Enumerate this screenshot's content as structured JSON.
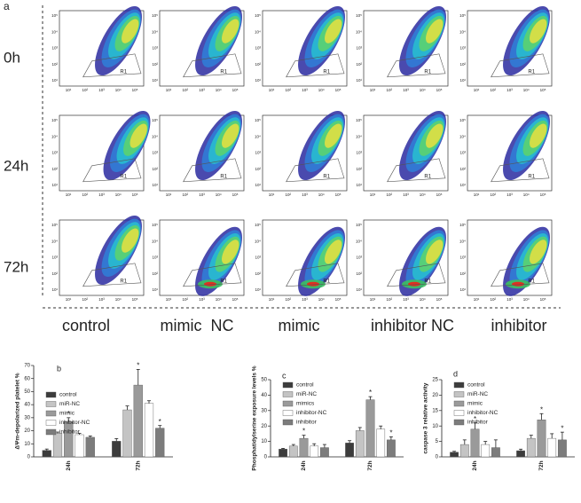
{
  "figure": {
    "panel_labels": [
      "a",
      "b",
      "c",
      "d"
    ],
    "time_points": [
      "0h",
      "24h",
      "72h"
    ],
    "groups": [
      "control",
      "mimic  NC",
      "mimic",
      "inhibitor NC",
      "inhibitor"
    ],
    "gate_label": "R1",
    "flow_ticks": [
      "10¹",
      "10²",
      "10³",
      "10⁴",
      "10⁵"
    ]
  },
  "chart_data": [
    {
      "type": "bar",
      "y_label": "ΔΨm-depolarized platelet %",
      "categories": [
        "24h",
        "72h"
      ],
      "ylim": [
        0,
        70
      ],
      "yticks": [
        0,
        10,
        20,
        30,
        40,
        50,
        60,
        70
      ],
      "legend": "top-left",
      "series": [
        {
          "name": "control",
          "color": "#3c3c3c",
          "values": [
            5,
            12
          ],
          "errors": [
            1,
            2
          ],
          "significance": [
            null,
            null
          ]
        },
        {
          "name": "miR-NC",
          "color": "#c4c4c4",
          "values": [
            18,
            36
          ],
          "errors": [
            1,
            3
          ],
          "significance": [
            null,
            null
          ]
        },
        {
          "name": "mimic",
          "color": "#9a9a9a",
          "values": [
            27,
            55
          ],
          "errors": [
            3,
            12
          ],
          "significance": [
            "*",
            "*"
          ]
        },
        {
          "name": "inhibitor-NC",
          "color": "#ffffff",
          "values": [
            17,
            41
          ],
          "errors": [
            1,
            2
          ],
          "significance": [
            null,
            null
          ]
        },
        {
          "name": "inhibitor",
          "color": "#7c7c7c",
          "values": [
            15,
            22
          ],
          "errors": [
            1,
            2
          ],
          "significance": [
            null,
            "*"
          ]
        }
      ]
    },
    {
      "type": "bar",
      "y_label": "Phosphatidylserine exposure levels %",
      "categories": [
        "24h",
        "72h"
      ],
      "ylim": [
        0,
        50
      ],
      "yticks": [
        0,
        10,
        20,
        30,
        40,
        50
      ],
      "legend": "top-left",
      "series": [
        {
          "name": "control",
          "color": "#3c3c3c",
          "values": [
            5,
            9
          ],
          "errors": [
            0.5,
            1.5
          ],
          "significance": [
            null,
            null
          ]
        },
        {
          "name": "miR-NC",
          "color": "#c4c4c4",
          "values": [
            7,
            17
          ],
          "errors": [
            1,
            2
          ],
          "significance": [
            null,
            null
          ]
        },
        {
          "name": "mimics",
          "color": "#9a9a9a",
          "values": [
            12,
            37
          ],
          "errors": [
            2,
            2
          ],
          "significance": [
            "*",
            "*"
          ]
        },
        {
          "name": "inhibitor-NC",
          "color": "#ffffff",
          "values": [
            7,
            18
          ],
          "errors": [
            1.5,
            2
          ],
          "significance": [
            null,
            null
          ]
        },
        {
          "name": "inhibitor",
          "color": "#7c7c7c",
          "values": [
            6,
            11
          ],
          "errors": [
            2,
            2
          ],
          "significance": [
            null,
            "*"
          ]
        }
      ]
    },
    {
      "type": "bar",
      "y_label": "caspase 3 relative activity",
      "categories": [
        "24h",
        "72h"
      ],
      "ylim": [
        0,
        25
      ],
      "yticks": [
        0,
        5,
        10,
        15,
        20,
        25
      ],
      "legend": "top-left",
      "series": [
        {
          "name": "control",
          "color": "#3c3c3c",
          "values": [
            1.5,
            2
          ],
          "errors": [
            0.3,
            0.5
          ],
          "significance": [
            null,
            null
          ]
        },
        {
          "name": "miR-NC",
          "color": "#c4c4c4",
          "values": [
            4,
            6
          ],
          "errors": [
            1.5,
            1
          ],
          "significance": [
            null,
            null
          ]
        },
        {
          "name": "mimic",
          "color": "#9a9a9a",
          "values": [
            9,
            12
          ],
          "errors": [
            2,
            2
          ],
          "significance": [
            "*",
            "*"
          ]
        },
        {
          "name": "inhibitor-NC",
          "color": "#ffffff",
          "values": [
            4,
            6
          ],
          "errors": [
            1,
            1.5
          ],
          "significance": [
            null,
            null
          ]
        },
        {
          "name": "inhibitor",
          "color": "#7c7c7c",
          "values": [
            3,
            5.5
          ],
          "errors": [
            2.5,
            2.5
          ],
          "significance": [
            null,
            "*"
          ]
        }
      ]
    }
  ]
}
